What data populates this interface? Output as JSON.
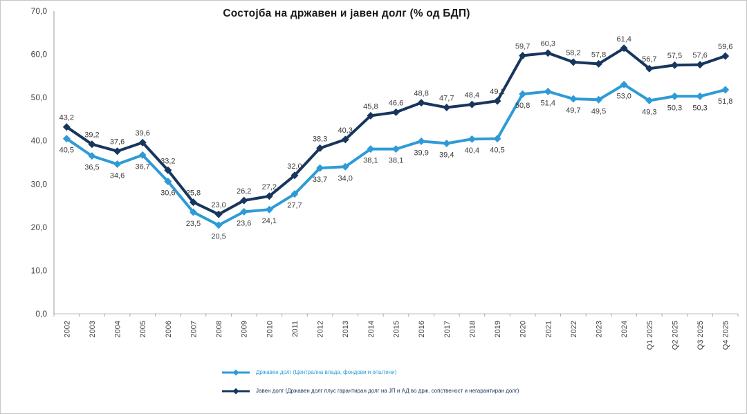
{
  "chart_data": {
    "type": "line",
    "title": "Состојба на државен и јавен долг (% од БДП)",
    "categories": [
      "2002",
      "2003",
      "2004",
      "2005",
      "2006",
      "2007",
      "2008",
      "2009",
      "2010",
      "2011",
      "2012",
      "2013",
      "2014",
      "2015",
      "2016",
      "2017",
      "2018",
      "2019",
      "2020",
      "2021",
      "2022",
      "2023",
      "2024",
      "Q1 2025",
      "Q2 2025",
      "Q3 2025",
      "Q4 2025"
    ],
    "series": [
      {
        "name": "Државен долг (Централна влада, фондови и општини)",
        "color": "#2E9BD6",
        "marker": "diamond",
        "label_position": "below",
        "values": [
          40.5,
          36.5,
          34.6,
          36.7,
          30.6,
          23.5,
          20.5,
          23.6,
          24.1,
          27.7,
          33.7,
          34.0,
          38.1,
          38.1,
          39.9,
          39.4,
          40.4,
          40.5,
          50.8,
          51.4,
          49.7,
          49.5,
          53.0,
          49.3,
          50.3,
          50.3,
          51.8
        ]
      },
      {
        "name": "Јавен долг (Државен долг плус гарантиран долг на ЈП и АД во држ. сопственост и негарантиран долг)",
        "color": "#17365D",
        "marker": "diamond",
        "label_position": "above",
        "values": [
          43.2,
          39.2,
          37.6,
          39.6,
          33.2,
          25.8,
          23.0,
          26.2,
          27.2,
          32.0,
          38.3,
          40.3,
          45.8,
          46.6,
          48.8,
          47.7,
          48.4,
          49.2,
          59.7,
          60.3,
          58.2,
          57.8,
          61.4,
          56.7,
          57.5,
          57.6,
          59.6
        ]
      }
    ],
    "xlabel": "",
    "ylabel": "",
    "ylim": [
      0,
      70
    ],
    "yticks": [
      0,
      10,
      20,
      30,
      40,
      50,
      60,
      70
    ],
    "decimal_separator": ",",
    "grid": false,
    "legend_position": "bottom"
  }
}
